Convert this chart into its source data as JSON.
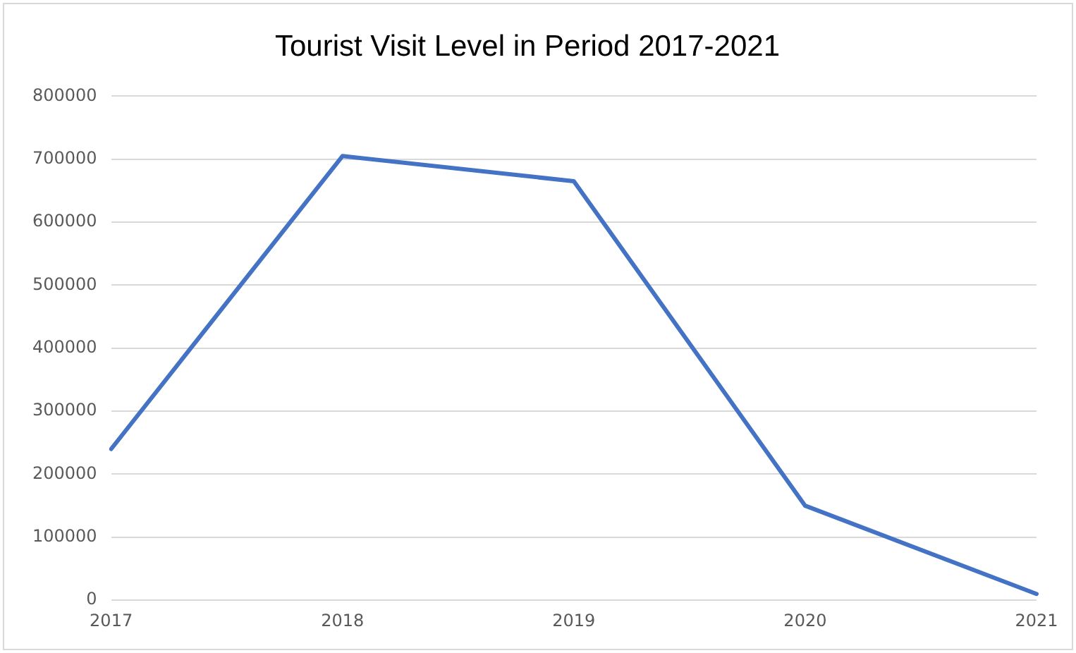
{
  "chart_data": {
    "type": "line",
    "title": "Tourist Visit Level in Period 2017-2021",
    "categories": [
      "2017",
      "2018",
      "2019",
      "2020",
      "2021"
    ],
    "series": [
      {
        "color": "#4472c4",
        "values": [
          240000,
          705000,
          665000,
          150000,
          10000
        ]
      }
    ],
    "ylim": [
      0,
      800000
    ],
    "yticks": [
      0,
      100000,
      200000,
      300000,
      400000,
      500000,
      600000,
      700000,
      800000
    ],
    "grid": "y",
    "legend": false,
    "marker": "none",
    "line_style": "solid"
  }
}
